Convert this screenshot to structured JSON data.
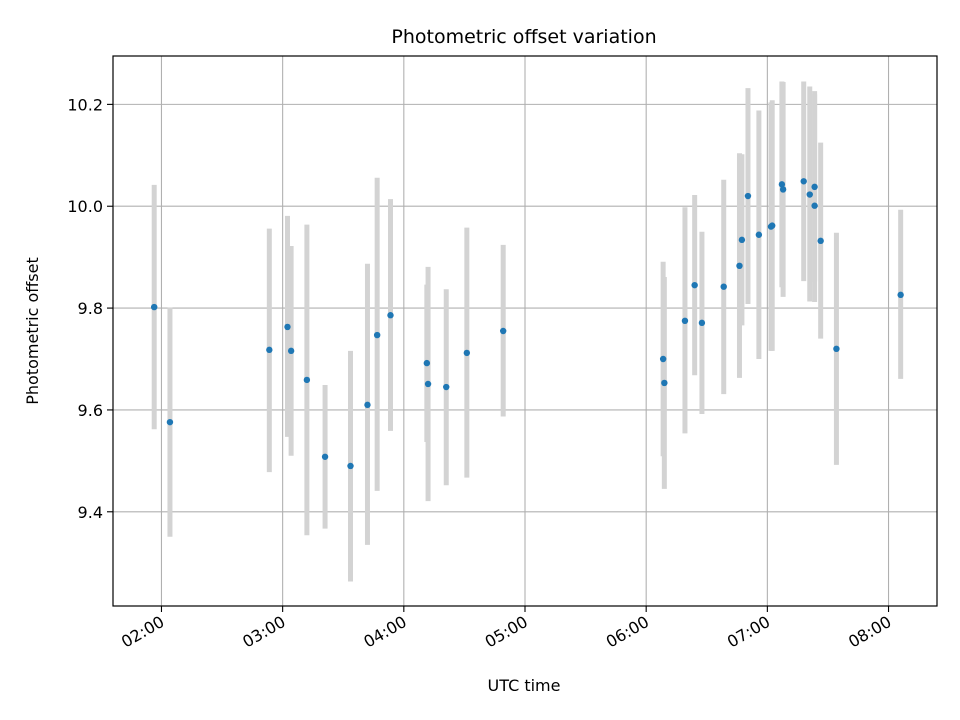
{
  "chart_data": {
    "type": "scatter",
    "title": "Photometric offset variation",
    "xlabel": "UTC time",
    "ylabel": "Photometric offset",
    "x_unit": "UTC hour",
    "xlim": [
      1.6,
      8.4
    ],
    "ylim": [
      9.215,
      10.295
    ],
    "grid": true,
    "legend": "none",
    "x_ticks": [
      {
        "value": 2,
        "label": "02:00"
      },
      {
        "value": 3,
        "label": "03:00"
      },
      {
        "value": 4,
        "label": "04:00"
      },
      {
        "value": 5,
        "label": "05:00"
      },
      {
        "value": 6,
        "label": "06:00"
      },
      {
        "value": 7,
        "label": "07:00"
      },
      {
        "value": 8,
        "label": "08:00"
      }
    ],
    "y_ticks": [
      {
        "value": 9.4,
        "label": "9.4"
      },
      {
        "value": 9.6,
        "label": "9.6"
      },
      {
        "value": 9.8,
        "label": "9.8"
      },
      {
        "value": 10.0,
        "label": "10.0"
      },
      {
        "value": 10.2,
        "label": "10.2"
      }
    ],
    "colors": {
      "point": "#1f77b4",
      "errorbar": "#d3d3d3",
      "grid": "#b0b0b0"
    },
    "points": [
      {
        "x": 1.94,
        "y": 9.802,
        "lo": 9.562,
        "hi": 10.042
      },
      {
        "x": 2.07,
        "y": 9.576,
        "lo": 9.351,
        "hi": 9.801
      },
      {
        "x": 2.89,
        "y": 9.718,
        "lo": 9.478,
        "hi": 9.956
      },
      {
        "x": 3.04,
        "y": 9.763,
        "lo": 9.547,
        "hi": 9.981
      },
      {
        "x": 3.07,
        "y": 9.716,
        "lo": 9.51,
        "hi": 9.922
      },
      {
        "x": 3.2,
        "y": 9.659,
        "lo": 9.354,
        "hi": 9.964
      },
      {
        "x": 3.35,
        "y": 9.508,
        "lo": 9.367,
        "hi": 9.649
      },
      {
        "x": 3.56,
        "y": 9.49,
        "lo": 9.263,
        "hi": 9.716
      },
      {
        "x": 3.7,
        "y": 9.61,
        "lo": 9.335,
        "hi": 9.887
      },
      {
        "x": 3.78,
        "y": 9.747,
        "lo": 9.441,
        "hi": 10.056
      },
      {
        "x": 3.89,
        "y": 9.786,
        "lo": 9.559,
        "hi": 10.014
      },
      {
        "x": 4.19,
        "y": 9.692,
        "lo": 9.537,
        "hi": 9.846
      },
      {
        "x": 4.2,
        "y": 9.651,
        "lo": 9.421,
        "hi": 9.881
      },
      {
        "x": 4.35,
        "y": 9.645,
        "lo": 9.452,
        "hi": 9.837
      },
      {
        "x": 4.52,
        "y": 9.712,
        "lo": 9.467,
        "hi": 9.958
      },
      {
        "x": 4.82,
        "y": 9.755,
        "lo": 9.587,
        "hi": 9.924
      },
      {
        "x": 6.14,
        "y": 9.7,
        "lo": 9.509,
        "hi": 9.891
      },
      {
        "x": 6.15,
        "y": 9.653,
        "lo": 9.445,
        "hi": 9.861
      },
      {
        "x": 6.32,
        "y": 9.775,
        "lo": 9.554,
        "hi": 9.998
      },
      {
        "x": 6.4,
        "y": 9.845,
        "lo": 9.668,
        "hi": 10.022
      },
      {
        "x": 6.46,
        "y": 9.771,
        "lo": 9.592,
        "hi": 9.95
      },
      {
        "x": 6.64,
        "y": 9.842,
        "lo": 9.631,
        "hi": 10.052
      },
      {
        "x": 6.77,
        "y": 9.883,
        "lo": 9.663,
        "hi": 10.104
      },
      {
        "x": 6.79,
        "y": 9.934,
        "lo": 9.766,
        "hi": 10.102
      },
      {
        "x": 6.84,
        "y": 10.02,
        "lo": 9.808,
        "hi": 10.232
      },
      {
        "x": 6.93,
        "y": 9.944,
        "lo": 9.7,
        "hi": 10.188
      },
      {
        "x": 7.03,
        "y": 9.96,
        "lo": 9.716,
        "hi": 10.204
      },
      {
        "x": 7.04,
        "y": 9.962,
        "lo": 9.716,
        "hi": 10.208
      },
      {
        "x": 7.12,
        "y": 10.043,
        "lo": 9.841,
        "hi": 10.245
      },
      {
        "x": 7.13,
        "y": 10.033,
        "lo": 9.822,
        "hi": 10.244
      },
      {
        "x": 7.3,
        "y": 10.049,
        "lo": 9.853,
        "hi": 10.245
      },
      {
        "x": 7.35,
        "y": 10.023,
        "lo": 9.813,
        "hi": 10.235
      },
      {
        "x": 7.39,
        "y": 10.038,
        "lo": 9.852,
        "hi": 10.226
      },
      {
        "x": 7.39,
        "y": 10.001,
        "lo": 9.812,
        "hi": 10.22
      },
      {
        "x": 7.44,
        "y": 9.932,
        "lo": 9.74,
        "hi": 10.125
      },
      {
        "x": 7.57,
        "y": 9.72,
        "lo": 9.492,
        "hi": 9.948
      },
      {
        "x": 8.1,
        "y": 9.826,
        "lo": 9.661,
        "hi": 9.993
      }
    ]
  }
}
